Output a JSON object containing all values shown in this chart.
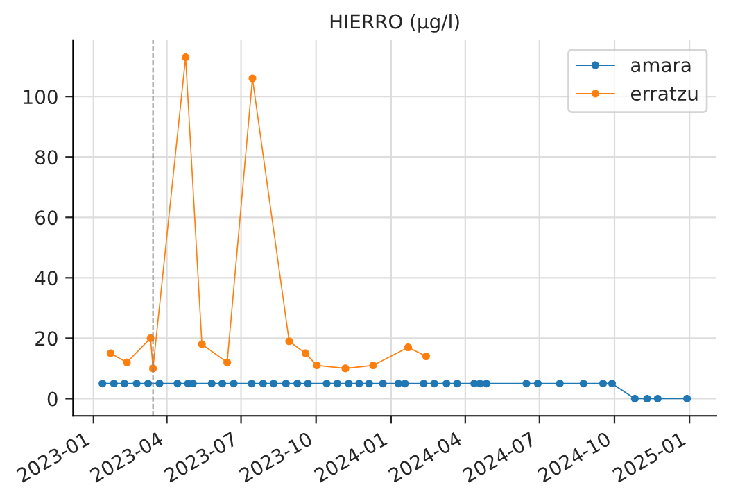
{
  "chart_data": {
    "type": "line",
    "title": "HIERRO (µg/l)",
    "marker": "circle",
    "line_style": "solid",
    "grid": true,
    "legend": "top right",
    "xlim": [
      "2022-12-07",
      "2025-02-03"
    ],
    "ylim": [
      -5.7,
      118.7
    ],
    "yticks": [
      0,
      20,
      40,
      60,
      80,
      100
    ],
    "xticks": [
      {
        "value": "2023-01-01",
        "label": "2023-01"
      },
      {
        "value": "2023-04-01",
        "label": "2023-04"
      },
      {
        "value": "2023-07-01",
        "label": "2023-07"
      },
      {
        "value": "2023-10-01",
        "label": "2023-10"
      },
      {
        "value": "2024-01-01",
        "label": "2024-01"
      },
      {
        "value": "2024-04-01",
        "label": "2024-04"
      },
      {
        "value": "2024-07-01",
        "label": "2024-07"
      },
      {
        "value": "2024-10-01",
        "label": "2024-10"
      },
      {
        "value": "2025-01-01",
        "label": "2025-01"
      }
    ],
    "ref_lines": [
      {
        "axis": "x",
        "value": "2023-03-15",
        "color": "#808080",
        "line_style": "dashed"
      }
    ],
    "series": [
      {
        "name": "amara",
        "color": "#1f77b4",
        "x": [
          "2023-01-12",
          "2023-01-26",
          "2023-02-08",
          "2023-02-23",
          "2023-03-09",
          "2023-03-23",
          "2023-04-14",
          "2023-04-27",
          "2023-05-03",
          "2023-05-26",
          "2023-06-08",
          "2023-06-22",
          "2023-07-14",
          "2023-07-28",
          "2023-08-10",
          "2023-08-25",
          "2023-09-08",
          "2023-09-21",
          "2023-10-14",
          "2023-10-27",
          "2023-11-10",
          "2023-11-23",
          "2023-12-05",
          "2023-12-22",
          "2024-01-10",
          "2024-01-18",
          "2024-02-10",
          "2024-02-23",
          "2024-03-09",
          "2024-03-22",
          "2024-04-12",
          "2024-04-19",
          "2024-04-27",
          "2024-06-15",
          "2024-06-29",
          "2024-07-26",
          "2024-08-24",
          "2024-09-17",
          "2024-09-28",
          "2024-10-26",
          "2024-11-10",
          "2024-11-23",
          "2024-12-29"
        ],
        "values": [
          5,
          5,
          5,
          5,
          5,
          5,
          5,
          5,
          5,
          5,
          5,
          5,
          5,
          5,
          5,
          5,
          5,
          5,
          5,
          5,
          5,
          5,
          5,
          5,
          5,
          5,
          5,
          5,
          5,
          5,
          5,
          5,
          5,
          5,
          5,
          5,
          5,
          5,
          5,
          0,
          0,
          0,
          0
        ]
      },
      {
        "name": "erratzu",
        "color": "#ff7f0e",
        "x": [
          "2023-01-22",
          "2023-02-11",
          "2023-03-12",
          "2023-03-15",
          "2023-04-24",
          "2023-05-14",
          "2023-06-14",
          "2023-07-15",
          "2023-08-29",
          "2023-09-18",
          "2023-10-02",
          "2023-11-06",
          "2023-12-10",
          "2024-01-22",
          "2024-02-13"
        ],
        "values": [
          15,
          12,
          20,
          10,
          113,
          18,
          12,
          106,
          19,
          15,
          11,
          10,
          11,
          17,
          14
        ]
      }
    ]
  }
}
